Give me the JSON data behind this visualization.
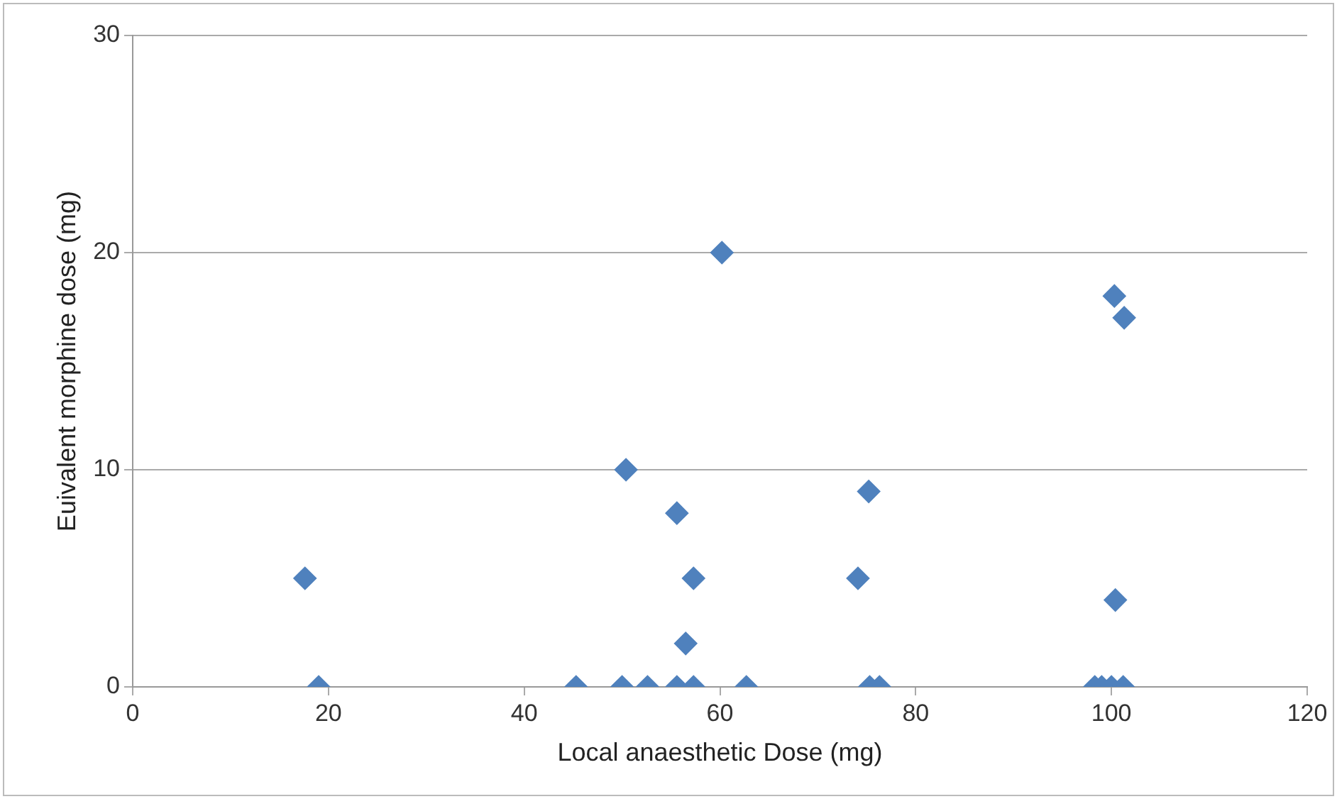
{
  "chart_data": {
    "type": "scatter",
    "xlabel": "Local anaesthetic Dose (mg)",
    "ylabel": "Euivalent morphine dose (mg)",
    "x": [
      17.6,
      19,
      45.3,
      50.4,
      50,
      52.6,
      55.6,
      55.6,
      56.5,
      57.3,
      57.3,
      60.2,
      62.7,
      74.1,
      75.2,
      75.3,
      76.3,
      98.3,
      99,
      100,
      101.2,
      100.4,
      100.3,
      101.3
    ],
    "series": [
      {
        "color": "#4f81bd",
        "values": [
          5,
          0,
          0,
          10,
          0,
          0,
          8,
          0,
          2,
          5,
          0,
          20,
          0,
          5,
          9,
          0,
          0,
          0,
          0,
          0,
          0,
          4,
          18,
          17
        ]
      }
    ],
    "xlim": [
      0,
      120
    ],
    "xticks": [
      0,
      20,
      40,
      60,
      80,
      100,
      120
    ],
    "ylim": [
      0,
      30
    ],
    "yticks": [
      0,
      10,
      20,
      30
    ],
    "grid": "y",
    "legend": false,
    "marker": "diamond"
  }
}
